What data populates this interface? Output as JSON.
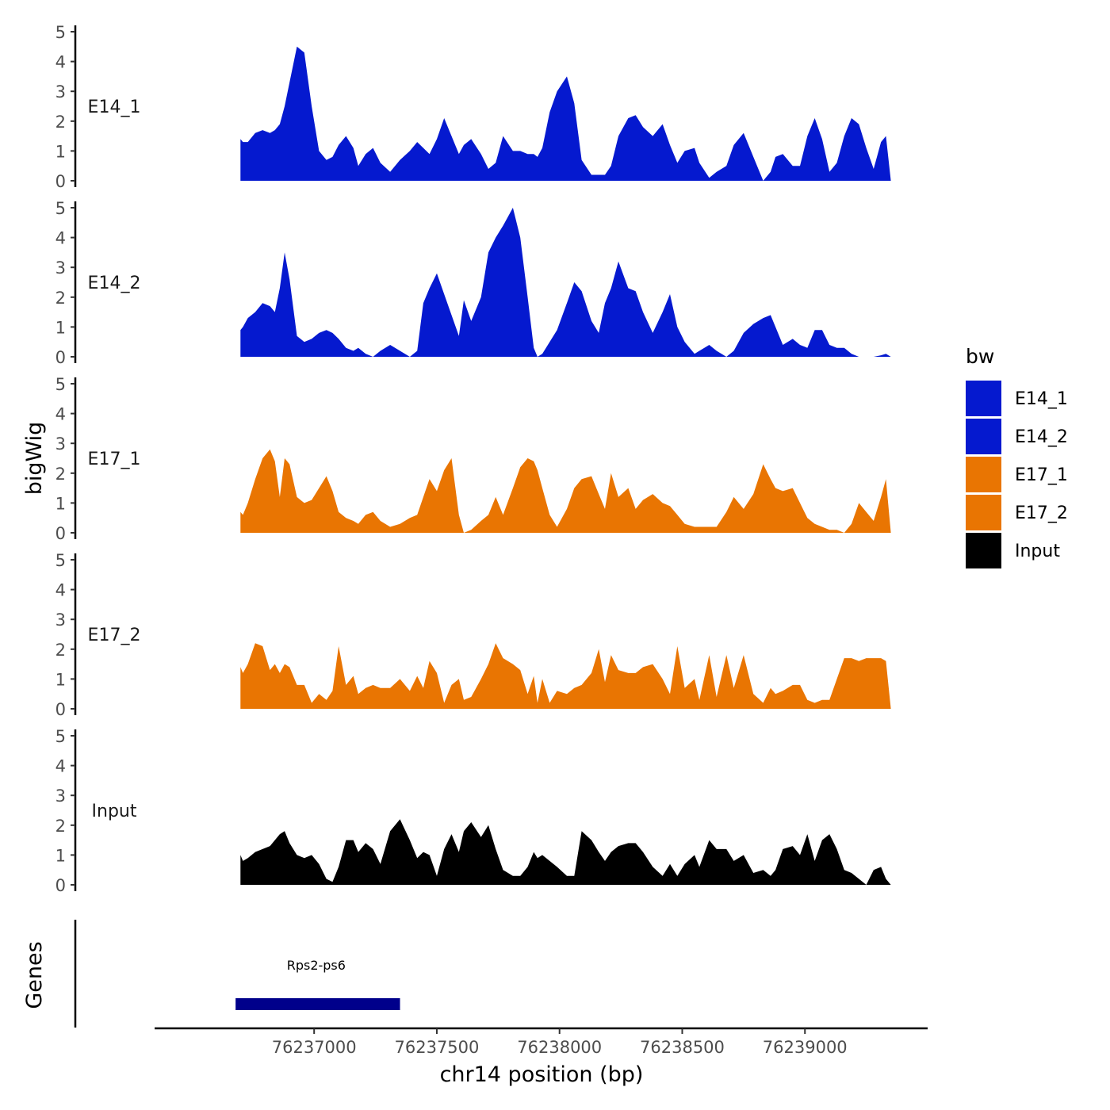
{
  "chart_data": {
    "type": "area",
    "title": "",
    "xlabel": "chr14 position (bp)",
    "ylabel": "bigWig",
    "genes_label": "Genes",
    "xlim": [
      76236350,
      76239500
    ],
    "x_ticks": [
      76237000,
      76237500,
      76238000,
      76238500,
      76239000
    ],
    "x_tick_labels": [
      "76237000",
      "76237500",
      "76238000",
      "76238500",
      "76239000"
    ],
    "ylim": [
      0,
      5
    ],
    "y_ticks": [
      0,
      1,
      2,
      3,
      4,
      5
    ],
    "y_tick_labels": [
      "0",
      "1",
      "2",
      "3",
      "4",
      "5"
    ],
    "grid": false,
    "legend": {
      "title": "bw",
      "position": "right",
      "entries": [
        {
          "label": "E14_1",
          "color": "#0519CF"
        },
        {
          "label": "E14_2",
          "color": "#0519CF"
        },
        {
          "label": "E17_1",
          "color": "#E97502"
        },
        {
          "label": "E17_2",
          "color": "#E97502"
        },
        {
          "label": "Input",
          "color": "#000000"
        }
      ]
    },
    "series": [
      {
        "name": "E14_1",
        "color": "#0519CF",
        "x": [
          76236700,
          76236710,
          76236730,
          76236760,
          76236790,
          76236820,
          76236840,
          76236860,
          76236880,
          76236900,
          76236930,
          76236960,
          76236990,
          76237020,
          76237050,
          76237075,
          76237100,
          76237130,
          76237160,
          76237180,
          76237210,
          76237240,
          76237270,
          76237310,
          76237350,
          76237390,
          76237420,
          76237445,
          76237470,
          76237500,
          76237530,
          76237560,
          76237590,
          76237610,
          76237640,
          76237680,
          76237710,
          76237740,
          76237770,
          76237810,
          76237840,
          76237870,
          76237895,
          76237910,
          76237930,
          76237960,
          76237990,
          76238030,
          76238060,
          76238090,
          76238130,
          76238160,
          76238185,
          76238210,
          76238240,
          76238280,
          76238310,
          76238340,
          76238380,
          76238420,
          76238450,
          76238480,
          76238510,
          76238550,
          76238570,
          76238610,
          76238640,
          76238680,
          76238710,
          76238750,
          76238790,
          76238830,
          76238860,
          76238880,
          76238910,
          76238950,
          76238980,
          76239010,
          76239040,
          76239070,
          76239100,
          76239130,
          76239160,
          76239190,
          76239220,
          76239250,
          76239280,
          76239310,
          76239330
        ],
        "values": [
          1.4,
          1.3,
          1.3,
          1.6,
          1.7,
          1.6,
          1.7,
          1.9,
          2.5,
          3.3,
          4.5,
          4.3,
          2.5,
          1.0,
          0.7,
          0.8,
          1.2,
          1.5,
          1.1,
          0.5,
          0.9,
          1.1,
          0.6,
          0.3,
          0.7,
          1.0,
          1.3,
          1.1,
          0.9,
          1.4,
          2.1,
          1.5,
          0.9,
          1.2,
          1.4,
          0.9,
          0.4,
          0.6,
          1.5,
          1.0,
          1.0,
          0.9,
          0.9,
          0.8,
          1.1,
          2.3,
          3.0,
          3.5,
          2.6,
          0.7,
          0.2,
          0.2,
          0.2,
          0.5,
          1.5,
          2.1,
          2.2,
          1.8,
          1.5,
          1.9,
          1.2,
          0.6,
          1.0,
          1.1,
          0.6,
          0.1,
          0.3,
          0.5,
          1.2,
          1.6,
          0.8,
          0.0,
          0.3,
          0.8,
          0.9,
          0.5,
          0.5,
          1.5,
          2.1,
          1.4,
          0.3,
          0.6,
          1.5,
          2.1,
          1.9,
          1.1,
          0.4,
          1.3,
          1.5
        ],
        "baseline_points": [
          {
            "x": 76236700,
            "value": 0
          },
          {
            "x": 76239350,
            "value": 0
          }
        ]
      },
      {
        "name": "E14_2",
        "color": "#0519CF",
        "x": [
          76236700,
          76236710,
          76236730,
          76236760,
          76236790,
          76236820,
          76236840,
          76236860,
          76236880,
          76236900,
          76236930,
          76236960,
          76236990,
          76237020,
          76237050,
          76237075,
          76237100,
          76237130,
          76237160,
          76237180,
          76237210,
          76237240,
          76237270,
          76237310,
          76237350,
          76237390,
          76237420,
          76237445,
          76237470,
          76237500,
          76237530,
          76237560,
          76237590,
          76237610,
          76237640,
          76237680,
          76237710,
          76237740,
          76237770,
          76237810,
          76237840,
          76237870,
          76237895,
          76237910,
          76237930,
          76237960,
          76237990,
          76238030,
          76238060,
          76238090,
          76238130,
          76238160,
          76238185,
          76238210,
          76238240,
          76238280,
          76238310,
          76238340,
          76238380,
          76238420,
          76238450,
          76238480,
          76238510,
          76238550,
          76238570,
          76238610,
          76238640,
          76238680,
          76238710,
          76238750,
          76238790,
          76238830,
          76238860,
          76238880,
          76238910,
          76238950,
          76238980,
          76239010,
          76239040,
          76239070,
          76239100,
          76239130,
          76239160,
          76239190,
          76239220,
          76239250,
          76239280,
          76239310,
          76239330
        ],
        "values": [
          0.9,
          1.0,
          1.3,
          1.5,
          1.8,
          1.7,
          1.5,
          2.3,
          3.5,
          2.6,
          0.7,
          0.5,
          0.6,
          0.8,
          0.9,
          0.8,
          0.6,
          0.3,
          0.2,
          0.3,
          0.1,
          0.0,
          0.2,
          0.4,
          0.2,
          0.0,
          0.2,
          1.8,
          2.3,
          2.8,
          2.1,
          1.4,
          0.7,
          1.9,
          1.2,
          2.0,
          3.5,
          4.0,
          4.4,
          5.0,
          4.0,
          2.0,
          0.3,
          0.0,
          0.1,
          0.5,
          0.9,
          1.8,
          2.5,
          2.2,
          1.2,
          0.8,
          1.8,
          2.3,
          3.2,
          2.3,
          2.2,
          1.5,
          0.8,
          1.5,
          2.1,
          1.0,
          0.5,
          0.1,
          0.2,
          0.4,
          0.2,
          0.0,
          0.2,
          0.8,
          1.1,
          1.3,
          1.4,
          1.0,
          0.4,
          0.6,
          0.4,
          0.3,
          0.9,
          0.9,
          0.4,
          0.3,
          0.3,
          0.1,
          0.0,
          0.0,
          0.0,
          0.05,
          0.1
        ],
        "baseline_points": [
          {
            "x": 76236700,
            "value": 0
          },
          {
            "x": 76239350,
            "value": 0
          }
        ]
      },
      {
        "name": "E17_1",
        "color": "#E97502",
        "x": [
          76236700,
          76236710,
          76236730,
          76236760,
          76236790,
          76236820,
          76236840,
          76236860,
          76236880,
          76236900,
          76236930,
          76236960,
          76236990,
          76237020,
          76237050,
          76237075,
          76237100,
          76237130,
          76237160,
          76237180,
          76237210,
          76237240,
          76237270,
          76237310,
          76237350,
          76237390,
          76237420,
          76237445,
          76237470,
          76237500,
          76237530,
          76237560,
          76237590,
          76237610,
          76237640,
          76237680,
          76237710,
          76237740,
          76237770,
          76237810,
          76237840,
          76237870,
          76237895,
          76237910,
          76237930,
          76237960,
          76237990,
          76238030,
          76238060,
          76238090,
          76238130,
          76238160,
          76238185,
          76238210,
          76238240,
          76238280,
          76238310,
          76238340,
          76238380,
          76238420,
          76238450,
          76238480,
          76238510,
          76238550,
          76238570,
          76238610,
          76238640,
          76238680,
          76238710,
          76238750,
          76238790,
          76238830,
          76238860,
          76238880,
          76238910,
          76238950,
          76238980,
          76239010,
          76239040,
          76239070,
          76239100,
          76239130,
          76239160,
          76239190,
          76239220,
          76239250,
          76239280,
          76239310,
          76239330
        ],
        "values": [
          0.7,
          0.6,
          1.0,
          1.8,
          2.5,
          2.8,
          2.4,
          1.2,
          2.5,
          2.3,
          1.2,
          1.0,
          1.1,
          1.5,
          1.9,
          1.4,
          0.7,
          0.5,
          0.4,
          0.3,
          0.6,
          0.7,
          0.4,
          0.2,
          0.3,
          0.5,
          0.6,
          1.2,
          1.8,
          1.4,
          2.1,
          2.5,
          0.6,
          0.0,
          0.1,
          0.4,
          0.6,
          1.2,
          0.6,
          1.5,
          2.2,
          2.5,
          2.4,
          2.1,
          1.5,
          0.6,
          0.2,
          0.8,
          1.5,
          1.8,
          1.9,
          1.3,
          0.8,
          2.0,
          1.2,
          1.5,
          0.8,
          1.1,
          1.3,
          1.0,
          0.9,
          0.6,
          0.3,
          0.2,
          0.2,
          0.2,
          0.2,
          0.7,
          1.2,
          0.8,
          1.3,
          2.3,
          1.8,
          1.5,
          1.4,
          1.5,
          1.0,
          0.5,
          0.3,
          0.2,
          0.1,
          0.1,
          0.0,
          0.3,
          1.0,
          0.7,
          0.4,
          1.2,
          1.8
        ],
        "baseline_points": [
          {
            "x": 76236700,
            "value": 0
          },
          {
            "x": 76239350,
            "value": 0
          }
        ]
      },
      {
        "name": "E17_2",
        "color": "#E97502",
        "x": [
          76236700,
          76236710,
          76236730,
          76236760,
          76236790,
          76236820,
          76236840,
          76236860,
          76236880,
          76236900,
          76236930,
          76236960,
          76236990,
          76237020,
          76237050,
          76237075,
          76237100,
          76237130,
          76237160,
          76237180,
          76237210,
          76237240,
          76237270,
          76237310,
          76237350,
          76237390,
          76237420,
          76237445,
          76237470,
          76237500,
          76237530,
          76237560,
          76237590,
          76237610,
          76237640,
          76237680,
          76237710,
          76237740,
          76237770,
          76237810,
          76237840,
          76237870,
          76237895,
          76237910,
          76237930,
          76237960,
          76237990,
          76238030,
          76238060,
          76238090,
          76238130,
          76238160,
          76238185,
          76238210,
          76238240,
          76238280,
          76238310,
          76238340,
          76238380,
          76238420,
          76238450,
          76238480,
          76238510,
          76238550,
          76238570,
          76238610,
          76238640,
          76238680,
          76238710,
          76238750,
          76238790,
          76238830,
          76238860,
          76238880,
          76238910,
          76238950,
          76238980,
          76239010,
          76239040,
          76239070,
          76239100,
          76239130,
          76239160,
          76239190,
          76239220,
          76239250,
          76239280,
          76239310,
          76239330
        ],
        "values": [
          1.4,
          1.2,
          1.5,
          2.2,
          2.1,
          1.3,
          1.5,
          1.2,
          1.5,
          1.4,
          0.8,
          0.8,
          0.2,
          0.5,
          0.3,
          0.6,
          2.1,
          0.8,
          1.1,
          0.5,
          0.7,
          0.8,
          0.7,
          0.7,
          1.0,
          0.6,
          1.1,
          0.7,
          1.6,
          1.2,
          0.2,
          0.8,
          1.0,
          0.3,
          0.4,
          1.0,
          1.5,
          2.2,
          1.7,
          1.5,
          1.3,
          0.5,
          1.1,
          0.2,
          1.0,
          0.2,
          0.6,
          0.5,
          0.7,
          0.8,
          1.2,
          2.0,
          0.9,
          1.8,
          1.3,
          1.2,
          1.2,
          1.4,
          1.5,
          1.0,
          0.5,
          2.1,
          0.7,
          1.0,
          0.3,
          1.8,
          0.4,
          1.8,
          0.7,
          1.8,
          0.5,
          0.2,
          0.7,
          0.5,
          0.6,
          0.8,
          0.8,
          0.3,
          0.2,
          0.3,
          0.3,
          1.0,
          1.7,
          1.7,
          1.6,
          1.7,
          1.7,
          1.7,
          1.6
        ],
        "baseline_points": [
          {
            "x": 76236700,
            "value": 0
          },
          {
            "x": 76239350,
            "value": 0
          }
        ]
      },
      {
        "name": "Input",
        "color": "#000000",
        "x": [
          76236700,
          76236710,
          76236730,
          76236760,
          76236790,
          76236820,
          76236840,
          76236860,
          76236880,
          76236900,
          76236930,
          76236960,
          76236990,
          76237020,
          76237050,
          76237075,
          76237100,
          76237130,
          76237160,
          76237180,
          76237210,
          76237240,
          76237270,
          76237310,
          76237350,
          76237390,
          76237420,
          76237445,
          76237470,
          76237500,
          76237530,
          76237560,
          76237590,
          76237610,
          76237640,
          76237680,
          76237710,
          76237740,
          76237770,
          76237810,
          76237840,
          76237870,
          76237895,
          76237910,
          76237930,
          76237960,
          76237990,
          76238030,
          76238060,
          76238090,
          76238130,
          76238160,
          76238185,
          76238210,
          76238240,
          76238280,
          76238310,
          76238340,
          76238380,
          76238420,
          76238450,
          76238480,
          76238510,
          76238550,
          76238570,
          76238610,
          76238640,
          76238680,
          76238710,
          76238750,
          76238790,
          76238830,
          76238860,
          76238880,
          76238910,
          76238950,
          76238980,
          76239010,
          76239040,
          76239070,
          76239100,
          76239130,
          76239160,
          76239190,
          76239220,
          76239250,
          76239280,
          76239310,
          76239330
        ],
        "values": [
          1.0,
          0.8,
          0.9,
          1.1,
          1.2,
          1.3,
          1.5,
          1.7,
          1.8,
          1.4,
          1.0,
          0.9,
          1.0,
          0.7,
          0.2,
          0.1,
          0.6,
          1.5,
          1.5,
          1.1,
          1.4,
          1.2,
          0.7,
          1.8,
          2.2,
          1.5,
          0.9,
          1.1,
          1.0,
          0.3,
          1.2,
          1.7,
          1.1,
          1.8,
          2.1,
          1.6,
          2.0,
          1.2,
          0.5,
          0.3,
          0.3,
          0.6,
          1.1,
          0.9,
          1.0,
          0.8,
          0.6,
          0.3,
          0.3,
          1.8,
          1.5,
          1.1,
          0.8,
          1.1,
          1.3,
          1.4,
          1.4,
          1.1,
          0.6,
          0.3,
          0.7,
          0.3,
          0.7,
          1.0,
          0.6,
          1.5,
          1.2,
          1.2,
          0.8,
          1.0,
          0.4,
          0.5,
          0.3,
          0.5,
          1.2,
          1.3,
          1.0,
          1.7,
          0.8,
          1.5,
          1.7,
          1.2,
          0.5,
          0.4,
          0.2,
          0.0,
          0.5,
          0.6,
          0.2
        ],
        "baseline_points": [
          {
            "x": 76236700,
            "value": 0
          },
          {
            "x": 76239350,
            "value": 0
          }
        ]
      }
    ],
    "genes": [
      {
        "name": "Rps2-ps6",
        "start": 76236680,
        "end": 76237350,
        "color": "#00008B"
      }
    ]
  }
}
